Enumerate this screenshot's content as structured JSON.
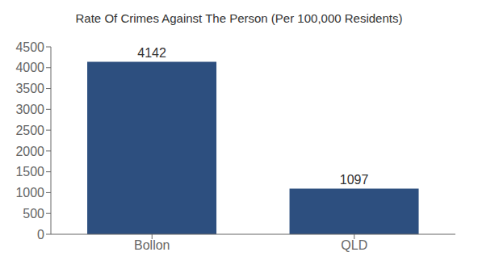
{
  "chart_data": {
    "type": "bar",
    "title": "Rate Of Crimes Against The Person (Per 100,000 Residents)",
    "categories": [
      "Bollon",
      "QLD"
    ],
    "values": [
      4142,
      1097
    ],
    "color": "#2d4f7f",
    "ylim": [
      0,
      4500
    ],
    "yticks": [
      0,
      500,
      1000,
      1500,
      2000,
      2500,
      3000,
      3500,
      4000,
      4500
    ],
    "grid": false,
    "data_labels": true
  }
}
